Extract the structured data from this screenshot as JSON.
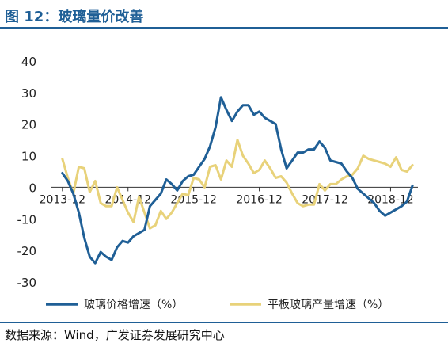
{
  "figure": {
    "title": "图 12：玻璃量价改善",
    "source": "数据来源：Wind，广发证券发展研究中心"
  },
  "colors": {
    "accent": "#1f5f96",
    "series_price": "#1f5f96",
    "series_output": "#e8d27a"
  },
  "chart_data": {
    "type": "line",
    "title": "",
    "xlabel": "",
    "ylabel": "",
    "ylim": [
      -30,
      40
    ],
    "yticks": [
      -30,
      -20,
      -10,
      0,
      10,
      20,
      30,
      40
    ],
    "xlim": [
      "2013-10",
      "2019-05"
    ],
    "xticks": [
      "2013-12",
      "2014-12",
      "2015-12",
      "2016-12",
      "2017-12",
      "2018-12"
    ],
    "grid": false,
    "legend": "bottom",
    "series": [
      {
        "name": "玻璃价格增速（%）",
        "x": [
          "2013-12",
          "2014-01",
          "2014-02",
          "2014-03",
          "2014-04",
          "2014-05",
          "2014-06",
          "2014-07",
          "2014-08",
          "2014-09",
          "2014-10",
          "2014-11",
          "2014-12",
          "2015-01",
          "2015-02",
          "2015-03",
          "2015-04",
          "2015-05",
          "2015-06",
          "2015-07",
          "2015-08",
          "2015-09",
          "2015-10",
          "2015-11",
          "2015-12",
          "2016-01",
          "2016-02",
          "2016-03",
          "2016-04",
          "2016-05",
          "2016-06",
          "2016-07",
          "2016-08",
          "2016-09",
          "2016-10",
          "2016-11",
          "2016-12",
          "2017-01",
          "2017-02",
          "2017-03",
          "2017-04",
          "2017-05",
          "2017-06",
          "2017-07",
          "2017-08",
          "2017-09",
          "2017-10",
          "2017-11",
          "2017-12",
          "2018-01",
          "2018-02",
          "2018-03",
          "2018-04",
          "2018-05",
          "2018-06",
          "2018-07",
          "2018-08",
          "2018-09",
          "2018-10",
          "2018-11",
          "2018-12",
          "2019-01",
          "2019-02",
          "2019-03",
          "2019-04"
        ],
        "values": [
          4.5,
          2,
          -2,
          -8,
          -16,
          -22,
          -24,
          -20.5,
          -22,
          -23,
          -19,
          -17,
          -17.5,
          -15.5,
          -14.5,
          -13.5,
          -6,
          -4,
          -2,
          2.5,
          1,
          -1,
          2,
          3.5,
          4,
          6.5,
          9,
          13,
          19,
          28.5,
          24.5,
          21,
          24,
          26,
          26,
          23,
          24,
          22,
          21,
          20,
          12,
          6,
          8.5,
          11,
          11,
          12,
          12,
          14.5,
          12.5,
          8.5,
          8,
          7.5,
          5,
          3,
          -0.5,
          -2,
          -3.5,
          -5,
          -7.5,
          -9,
          -8,
          -7,
          -6,
          -4.5,
          0.5
        ]
      },
      {
        "name": "平板玻璃产量增速（%）",
        "x": [
          "2013-12",
          "2014-01",
          "2014-02",
          "2014-03",
          "2014-04",
          "2014-05",
          "2014-06",
          "2014-07",
          "2014-08",
          "2014-09",
          "2014-10",
          "2014-11",
          "2014-12",
          "2015-01",
          "2015-02",
          "2015-03",
          "2015-04",
          "2015-05",
          "2015-06",
          "2015-07",
          "2015-08",
          "2015-09",
          "2015-10",
          "2015-11",
          "2015-12",
          "2016-01",
          "2016-02",
          "2016-03",
          "2016-04",
          "2016-05",
          "2016-06",
          "2016-07",
          "2016-08",
          "2016-09",
          "2016-10",
          "2016-11",
          "2016-12",
          "2017-01",
          "2017-02",
          "2017-03",
          "2017-04",
          "2017-05",
          "2017-06",
          "2017-07",
          "2017-08",
          "2017-09",
          "2017-10",
          "2017-11",
          "2017-12",
          "2018-01",
          "2018-02",
          "2018-03",
          "2018-04",
          "2018-05",
          "2018-06",
          "2018-07",
          "2018-08",
          "2018-09",
          "2018-10",
          "2018-11",
          "2018-12",
          "2019-01",
          "2019-02",
          "2019-03",
          "2019-04"
        ],
        "values": [
          9,
          3,
          -2,
          6.5,
          6,
          -1.5,
          2,
          -5,
          -6,
          -6,
          0,
          -4,
          -8,
          -11,
          -3,
          -8,
          -13,
          -12,
          -7.5,
          -10,
          -8,
          -5,
          -2,
          -2.5,
          3,
          2.5,
          0,
          6.5,
          7,
          2.5,
          8.5,
          6.5,
          15,
          10,
          7.5,
          4.5,
          5.5,
          8.5,
          6,
          3,
          3.5,
          1.5,
          -2,
          -5,
          -6,
          -5.5,
          -5.5,
          1,
          -1,
          1,
          1,
          2.5,
          3.5,
          4,
          6,
          10,
          9,
          8.5,
          8,
          7.5,
          6.5,
          9.5,
          5.5,
          5,
          7
        ]
      }
    ]
  }
}
